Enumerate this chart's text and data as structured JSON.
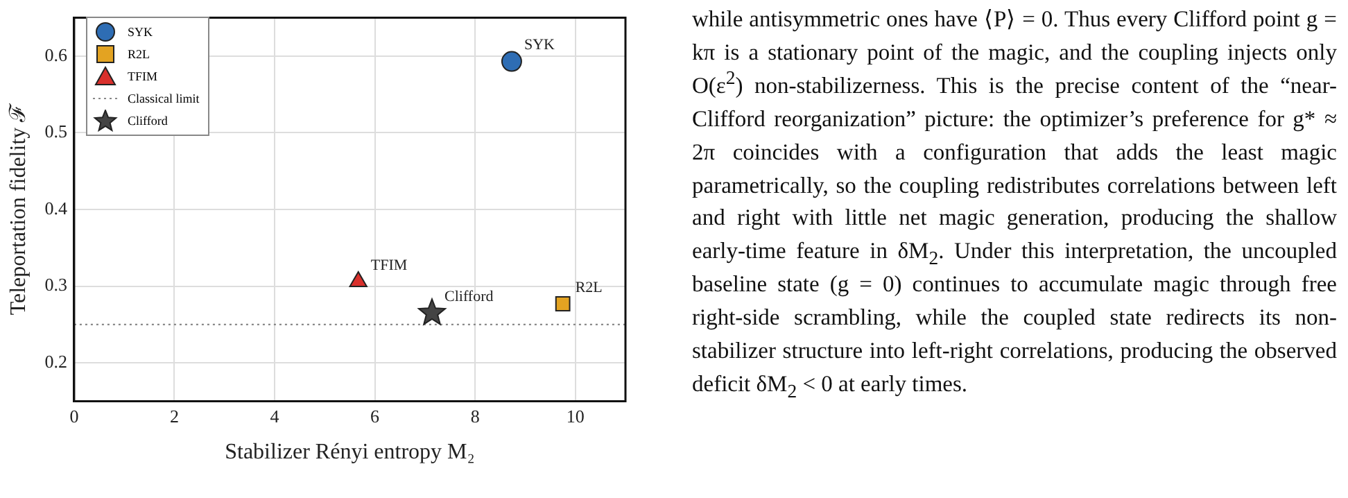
{
  "chart_data": {
    "type": "scatter",
    "xlabel": "Stabilizer Rényi entropy M₂",
    "ylabel": "Teleportation fidelity ℱ",
    "xlim": [
      0,
      11
    ],
    "xticks": [
      0,
      2,
      4,
      6,
      8,
      10
    ],
    "ylim": [
      0.15,
      0.65
    ],
    "yticks": [
      0.2,
      0.3,
      0.4,
      0.5,
      0.6
    ],
    "grid": true,
    "legend": "top left",
    "series": [
      {
        "name": "SYK",
        "color": "#2e6db4",
        "marker": "circle",
        "x": [
          8.73
        ],
        "values": [
          0.593
        ]
      },
      {
        "name": "R2L",
        "color": "#e3a322",
        "marker": "square",
        "x": [
          9.75
        ],
        "values": [
          0.277
        ]
      },
      {
        "name": "TFIM",
        "color": "#d9302c",
        "marker": "triangle",
        "x": [
          5.67
        ],
        "values": [
          0.306
        ]
      },
      {
        "name": "Clifford",
        "color": "#444444",
        "marker": "star",
        "x": [
          7.14
        ],
        "values": [
          0.265
        ]
      }
    ],
    "ref_lines": [
      {
        "axis": "y",
        "value": 0.25,
        "label": "Classical limit",
        "color": "#888888",
        "line_style": "dotted"
      }
    ],
    "annotations": [
      "while antisymmetric ones have ⟨P⟩ = 0. Thus every Clifford point g = kπ is a stationary point of the magic, and the coupling injects only O(ε$^{2}$) non-stabilizerness. This is the precise content of the “near-Clifford reorganization” picture: the optimizer’s preference for g* ≈ 2π coincides with a configuration that adds the least magic parametrically, so the coupling redistributes correlations between left and right with little net magic generation, producing the shallow early-time feature in δM$_{2}$. Under this interpretation, the uncoupled baseline state (g = 0) continues to accumulate magic through free right-side scrambling, while the coupled state redirects its non-stabilizer structure into left-right correlations, producing the observed deficit δM$_{2}$ < 0 at early times."
    ]
  }
}
